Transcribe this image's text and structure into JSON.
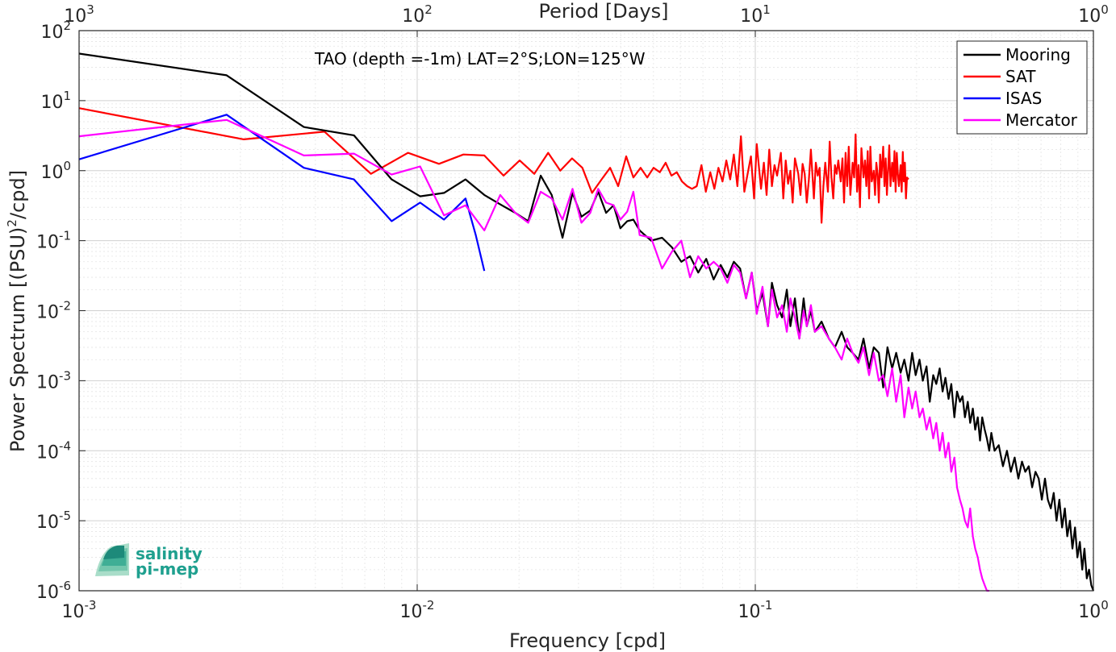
{
  "chart_data": {
    "type": "line",
    "annotation": "TAO (depth =-1m) LAT=2°S;LON=125°W",
    "xlabel": "Frequency [cpd]",
    "ylabel": "Power Spectrum [(PSU)",
    "ylabel_sup": "2",
    "ylabel_tail": "/cpd]",
    "x2label": "Period [Days]",
    "xscale": "log",
    "yscale": "log",
    "xlim": [
      0.001,
      1
    ],
    "ylim": [
      1e-06,
      100
    ],
    "grid": true,
    "legend_position": "top-right",
    "x_ticks": [
      {
        "base": "10",
        "exp": "-3",
        "value": 0.001
      },
      {
        "base": "10",
        "exp": "-2",
        "value": 0.01
      },
      {
        "base": "10",
        "exp": "-1",
        "value": 0.1
      },
      {
        "base": "10",
        "exp": "0",
        "value": 1
      }
    ],
    "y_ticks": [
      {
        "base": "10",
        "exp": "2",
        "value": 100
      },
      {
        "base": "10",
        "exp": "1",
        "value": 10
      },
      {
        "base": "10",
        "exp": "0",
        "value": 1
      },
      {
        "base": "10",
        "exp": "-1",
        "value": 0.1
      },
      {
        "base": "10",
        "exp": "-2",
        "value": 0.01
      },
      {
        "base": "10",
        "exp": "-3",
        "value": 0.001
      },
      {
        "base": "10",
        "exp": "-4",
        "value": 0.0001
      },
      {
        "base": "10",
        "exp": "-5",
        "value": 1e-05
      },
      {
        "base": "10",
        "exp": "-6",
        "value": 1e-06
      }
    ],
    "x2_ticks": [
      {
        "base": "10",
        "exp": "3",
        "value": 1000
      },
      {
        "base": "10",
        "exp": "2",
        "value": 100
      },
      {
        "base": "10",
        "exp": "1",
        "value": 10
      },
      {
        "base": "10",
        "exp": "0",
        "value": 1
      }
    ],
    "series": [
      {
        "name": "Mooring",
        "color": "#000000",
        "x": [
          0.001,
          0.00273,
          0.00462,
          0.0065,
          0.0084,
          0.0102,
          0.012,
          0.0139,
          0.0158,
          0.0176,
          0.0195,
          0.0213,
          0.0232,
          0.025,
          0.0269,
          0.0288,
          0.0306,
          0.0325,
          0.0343,
          0.0362,
          0.0381,
          0.0399,
          0.0418,
          0.0436,
          0.0455,
          0.0492,
          0.053,
          0.0567,
          0.0604,
          0.0641,
          0.0678,
          0.0716,
          0.0753,
          0.079,
          0.0827,
          0.0864,
          0.0902,
          0.0939,
          0.0976,
          0.101,
          0.105,
          0.109,
          0.112,
          0.116,
          0.12,
          0.124,
          0.127,
          0.131,
          0.135,
          0.139,
          0.142,
          0.146,
          0.15,
          0.157,
          0.165,
          0.172,
          0.18,
          0.187,
          0.194,
          0.202,
          0.209,
          0.217,
          0.224,
          0.232,
          0.239,
          0.246,
          0.254,
          0.261,
          0.269,
          0.276,
          0.284,
          0.291,
          0.298,
          0.306,
          0.313,
          0.321,
          0.328,
          0.336,
          0.343,
          0.351,
          0.358,
          0.365,
          0.373,
          0.38,
          0.388,
          0.395,
          0.403,
          0.41,
          0.417,
          0.425,
          0.432,
          0.44,
          0.447,
          0.455,
          0.462,
          0.469,
          0.477,
          0.484,
          0.492,
          0.499,
          0.51,
          0.525,
          0.54,
          0.555,
          0.57,
          0.585,
          0.6,
          0.615,
          0.629,
          0.644,
          0.659,
          0.674,
          0.689,
          0.704,
          0.719,
          0.733,
          0.748,
          0.763,
          0.778,
          0.793,
          0.808,
          0.823,
          0.837,
          0.852,
          0.867,
          0.882,
          0.897,
          0.912,
          0.927,
          0.941,
          0.956,
          0.971,
          0.986,
          1.0
        ],
        "values": [
          47,
          23,
          4.2,
          3.2,
          0.75,
          0.43,
          0.48,
          0.75,
          0.45,
          0.33,
          0.25,
          0.19,
          0.85,
          0.45,
          0.11,
          0.48,
          0.22,
          0.27,
          0.5,
          0.25,
          0.32,
          0.15,
          0.19,
          0.2,
          0.14,
          0.1,
          0.11,
          0.08,
          0.05,
          0.06,
          0.035,
          0.055,
          0.028,
          0.045,
          0.03,
          0.05,
          0.04,
          0.015,
          0.035,
          0.01,
          0.018,
          0.006,
          0.025,
          0.012,
          0.008,
          0.02,
          0.006,
          0.015,
          0.004,
          0.015,
          0.006,
          0.01,
          0.005,
          0.007,
          0.004,
          0.003,
          0.005,
          0.003,
          0.0025,
          0.002,
          0.004,
          0.0015,
          0.003,
          0.0025,
          0.0008,
          0.003,
          0.0015,
          0.0025,
          0.0013,
          0.002,
          0.001,
          0.0025,
          0.0012,
          0.002,
          0.001,
          0.0016,
          0.0005,
          0.0012,
          0.0009,
          0.0015,
          0.0007,
          0.0011,
          0.00055,
          0.0009,
          0.0003,
          0.0007,
          0.0005,
          0.0006,
          0.0003,
          0.0005,
          0.00025,
          0.0004,
          0.0002,
          0.0003,
          0.00014,
          0.0003,
          0.0002,
          0.00015,
          0.0001,
          0.00018,
          0.0001,
          0.00012,
          6e-05,
          0.0001,
          5e-05,
          8e-05,
          4e-05,
          7e-05,
          5e-05,
          6e-05,
          3e-05,
          5e-05,
          4e-05,
          2e-05,
          4e-05,
          2e-05,
          1.5e-05,
          2.5e-05,
          1e-05,
          2e-05,
          8e-06,
          1.5e-05,
          6e-06,
          1e-05,
          4e-06,
          8e-06,
          3e-06,
          5e-06,
          2e-06,
          4e-06,
          1.5e-06,
          2e-06,
          1.2e-06,
          1e-06
        ]
      },
      {
        "name": "SAT",
        "color": "#ff0000",
        "x": [
          0.001,
          0.00307,
          0.00532,
          0.0073,
          0.0094,
          0.0116,
          0.0137,
          0.0158,
          0.018,
          0.0201,
          0.0222,
          0.0244,
          0.0265,
          0.0287,
          0.0308,
          0.0329,
          0.0351,
          0.0372,
          0.0393,
          0.0415,
          0.0436,
          0.0458,
          0.0479,
          0.05,
          0.0522,
          0.0543,
          0.0565,
          0.0586,
          0.0607,
          0.0629,
          0.065,
          0.0671,
          0.0693,
          0.0714,
          0.0736,
          0.0757,
          0.0778,
          0.08,
          0.0821,
          0.0843,
          0.0864,
          0.0885,
          0.0907,
          0.0928,
          0.0949,
          0.0971,
          0.0992,
          0.101,
          0.104,
          0.106,
          0.108,
          0.11,
          0.112,
          0.114,
          0.116,
          0.119,
          0.121,
          0.123,
          0.125,
          0.127,
          0.129,
          0.131,
          0.134,
          0.136,
          0.138,
          0.14,
          0.142,
          0.144,
          0.146,
          0.149,
          0.151,
          0.153,
          0.155,
          0.157,
          0.159,
          0.161,
          0.164,
          0.166,
          0.168,
          0.17,
          0.172,
          0.174,
          0.176,
          0.179,
          0.181,
          0.183,
          0.185,
          0.187,
          0.189,
          0.191,
          0.194,
          0.196,
          0.198,
          0.2,
          0.202,
          0.204,
          0.206,
          0.209,
          0.211,
          0.213,
          0.215,
          0.217,
          0.219,
          0.221,
          0.224,
          0.226,
          0.228,
          0.23,
          0.232,
          0.234,
          0.236,
          0.239,
          0.241,
          0.243,
          0.245,
          0.247,
          0.249,
          0.251,
          0.254,
          0.256,
          0.258,
          0.26,
          0.262,
          0.264,
          0.266,
          0.269,
          0.271,
          0.273,
          0.275,
          0.277,
          0.279,
          0.281,
          0.284
        ],
        "values": [
          7.8,
          2.8,
          3.6,
          0.9,
          1.8,
          1.25,
          1.7,
          1.65,
          0.85,
          1.4,
          0.9,
          1.8,
          1.0,
          1.5,
          1.1,
          0.48,
          0.75,
          1.1,
          0.6,
          1.6,
          0.8,
          1.1,
          0.8,
          1.1,
          0.95,
          1.3,
          0.85,
          0.95,
          0.7,
          0.6,
          0.55,
          0.6,
          1.2,
          0.5,
          0.95,
          0.55,
          1.1,
          0.7,
          1.4,
          0.75,
          1.7,
          0.6,
          3.1,
          0.5,
          0.9,
          1.6,
          0.4,
          2.4,
          0.55,
          1.3,
          0.45,
          2.0,
          0.6,
          1.2,
          0.85,
          1.8,
          0.4,
          1.4,
          0.65,
          1.0,
          0.35,
          1.5,
          0.9,
          0.45,
          1.25,
          0.9,
          0.35,
          0.75,
          2.0,
          0.4,
          1.3,
          0.85,
          1.1,
          0.18,
          0.6,
          1.3,
          0.5,
          2.6,
          0.8,
          0.4,
          1.2,
          0.9,
          1.4,
          0.7,
          1.5,
          0.35,
          1.8,
          0.6,
          2.2,
          0.45,
          1.3,
          0.8,
          3.3,
          0.5,
          1.2,
          0.3,
          2.1,
          0.8,
          1.4,
          0.6,
          1.9,
          0.4,
          2.2,
          0.7,
          1.0,
          0.45,
          1.3,
          0.9,
          0.35,
          1.7,
          0.8,
          2.2,
          0.6,
          1.5,
          0.45,
          1.0,
          2.3,
          0.6,
          1.3,
          0.7,
          1.9,
          0.5,
          1.8,
          0.9,
          0.6,
          1.2,
          0.5,
          1.85,
          0.7,
          1.3,
          0.4,
          0.8,
          0.75
        ]
      },
      {
        "name": "ISAS",
        "color": "#0000ff",
        "x": [
          0.001,
          0.00273,
          0.00462,
          0.0065,
          0.0084,
          0.0102,
          0.012,
          0.0139,
          0.0149,
          0.0158
        ],
        "values": [
          1.45,
          6.3,
          1.1,
          0.75,
          0.19,
          0.35,
          0.2,
          0.4,
          0.12,
          0.037
        ]
      },
      {
        "name": "Mercator",
        "color": "#ff00ff",
        "x": [
          0.001,
          0.00273,
          0.00462,
          0.0065,
          0.0084,
          0.0102,
          0.012,
          0.0139,
          0.0158,
          0.0176,
          0.0195,
          0.0213,
          0.0232,
          0.025,
          0.0269,
          0.0288,
          0.0306,
          0.0325,
          0.0343,
          0.0362,
          0.0381,
          0.0399,
          0.0418,
          0.0436,
          0.0455,
          0.0492,
          0.053,
          0.0567,
          0.0604,
          0.0641,
          0.0678,
          0.0716,
          0.0753,
          0.079,
          0.0827,
          0.0864,
          0.0902,
          0.0939,
          0.0976,
          0.101,
          0.105,
          0.109,
          0.112,
          0.116,
          0.12,
          0.124,
          0.127,
          0.131,
          0.135,
          0.139,
          0.142,
          0.146,
          0.15,
          0.157,
          0.165,
          0.172,
          0.18,
          0.187,
          0.194,
          0.202,
          0.209,
          0.217,
          0.224,
          0.232,
          0.239,
          0.246,
          0.254,
          0.261,
          0.269,
          0.276,
          0.284,
          0.291,
          0.298,
          0.306,
          0.313,
          0.321,
          0.328,
          0.336,
          0.343,
          0.351,
          0.358,
          0.365,
          0.373,
          0.38,
          0.388,
          0.395,
          0.403,
          0.41,
          0.417,
          0.425,
          0.432,
          0.44,
          0.447,
          0.455,
          0.462,
          0.469,
          0.477,
          0.484,
          0.492
        ],
        "values": [
          3.1,
          5.3,
          1.65,
          1.75,
          0.88,
          1.15,
          0.23,
          0.32,
          0.14,
          0.45,
          0.25,
          0.18,
          0.5,
          0.4,
          0.2,
          0.55,
          0.18,
          0.25,
          0.55,
          0.35,
          0.32,
          0.2,
          0.26,
          0.5,
          0.12,
          0.11,
          0.04,
          0.07,
          0.1,
          0.03,
          0.06,
          0.04,
          0.05,
          0.04,
          0.025,
          0.045,
          0.035,
          0.015,
          0.035,
          0.009,
          0.022,
          0.006,
          0.02,
          0.008,
          0.012,
          0.005,
          0.015,
          0.008,
          0.004,
          0.01,
          0.006,
          0.012,
          0.005,
          0.006,
          0.004,
          0.003,
          0.002,
          0.004,
          0.0025,
          0.0018,
          0.003,
          0.0012,
          0.0025,
          0.001,
          0.0012,
          0.0006,
          0.0015,
          0.0005,
          0.0012,
          0.0003,
          0.0008,
          0.0004,
          0.0007,
          0.0003,
          0.0004,
          0.0002,
          0.0003,
          0.00015,
          0.00025,
          0.0001,
          0.00018,
          8e-05,
          0.00013,
          5e-05,
          8e-05,
          3e-05,
          2e-05,
          1.5e-05,
          1e-05,
          8e-06,
          1.5e-05,
          6e-06,
          4e-06,
          3e-06,
          2e-06,
          1.5e-06,
          1.2e-06,
          1e-06,
          9.5e-07
        ]
      }
    ]
  },
  "logo": {
    "line1": "salinity",
    "line2": "pi-mep"
  }
}
